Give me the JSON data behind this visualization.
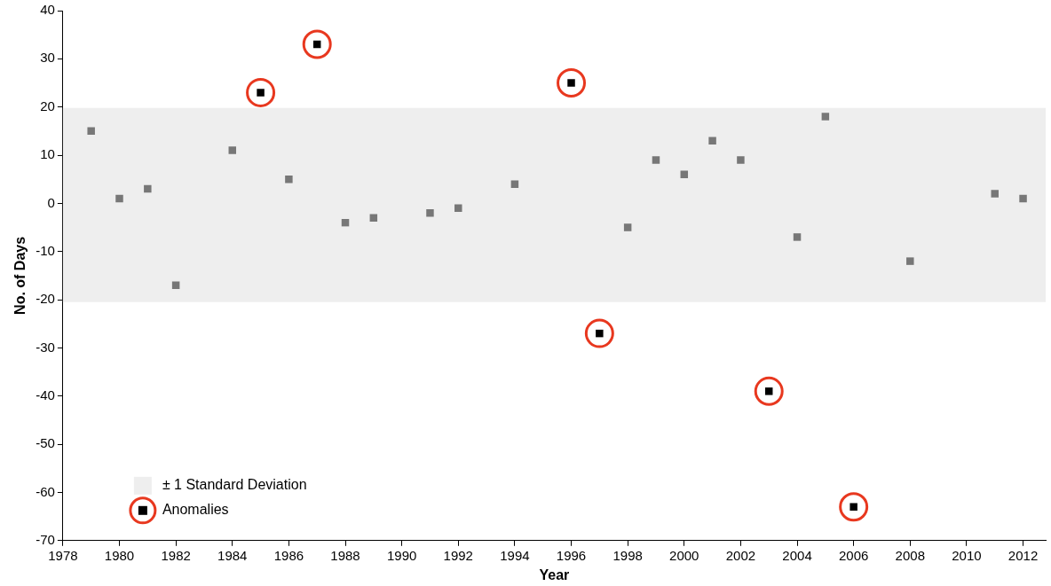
{
  "chart_data": {
    "type": "scatter",
    "xlabel": "Year",
    "ylabel": "No. of Days",
    "xlim": [
      1978,
      2012.8
    ],
    "xticks": [
      1978,
      1980,
      1982,
      1984,
      1986,
      1988,
      1990,
      1992,
      1994,
      1996,
      1998,
      2000,
      2002,
      2004,
      2006,
      2008,
      2010,
      2012
    ],
    "ylim": [
      -70,
      40
    ],
    "yticks": [
      -70,
      -60,
      -50,
      -40,
      -30,
      -20,
      -10,
      0,
      10,
      20,
      30,
      40
    ],
    "grid": false,
    "marker": "square",
    "legend": "bottom left",
    "bands": [
      {
        "axis": "y",
        "from": -20.5,
        "to": 19.8,
        "label": "± 1 Standard Deviation",
        "color": "#eeeeee"
      }
    ],
    "series": [
      {
        "color": "#777777",
        "x": [
          1979,
          1980,
          1981,
          1982,
          1984,
          1986,
          1988,
          1989,
          1991,
          1992,
          1994,
          1998,
          1999,
          2000,
          2001,
          2002,
          2004,
          2005,
          2008,
          2011,
          2012
        ],
        "values": [
          15,
          1,
          3,
          -17,
          11,
          5,
          -4,
          -3,
          -2,
          -1,
          4,
          -5,
          9,
          6,
          13,
          9,
          -7,
          18,
          -12,
          2,
          1
        ]
      },
      {
        "name": "Anomalies",
        "color": "#000000",
        "x": [
          1985,
          1987,
          1996,
          1997,
          2003,
          2006
        ],
        "values": [
          23,
          33,
          25,
          -27,
          -39,
          -63
        ]
      }
    ]
  }
}
